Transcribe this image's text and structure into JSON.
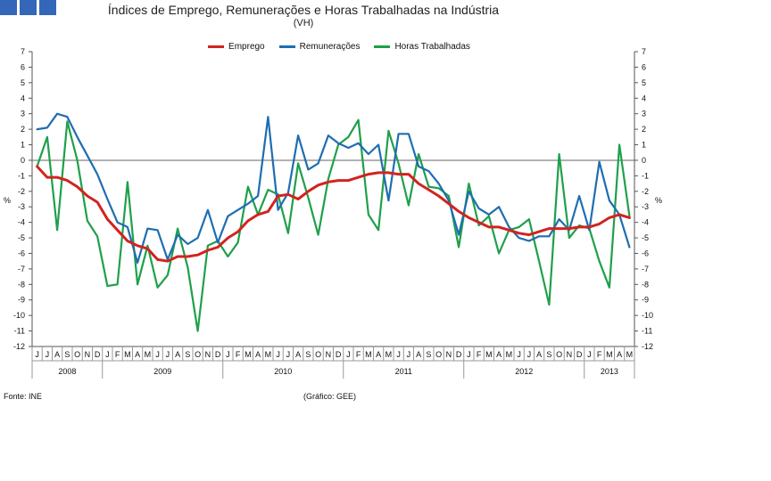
{
  "header": {
    "title": "Índices de Emprego, Remunerações e Horas Trabalhadas na Indústria",
    "subtitle": "(VH)"
  },
  "legend": {
    "emprego": "Emprego",
    "remuneracoes": "Remunerações",
    "horas": "Horas Trabalhadas"
  },
  "colors": {
    "emprego": "#d2231f",
    "remuneracoes": "#1f6db1",
    "horas": "#1ea04a"
  },
  "footer": {
    "source": "Fonte: INE",
    "credit": "(Gráfico: GEE)"
  },
  "chart_data": {
    "type": "line",
    "title": "Índices de Emprego, Remunerações e Horas Trabalhadas na Indústria",
    "subtitle": "(VH)",
    "ylabel_left": "%",
    "ylabel_right": "%",
    "ylim": [
      -12,
      7
    ],
    "yticks": [
      7,
      6,
      5,
      4,
      3,
      2,
      1,
      0,
      -1,
      -2,
      -3,
      -4,
      -5,
      -6,
      -7,
      -8,
      -9,
      -10,
      -11,
      -12
    ],
    "months": [
      "J",
      "J",
      "A",
      "S",
      "O",
      "N",
      "D",
      "J",
      "F",
      "M",
      "A",
      "M",
      "J",
      "J",
      "A",
      "S",
      "O",
      "N",
      "D",
      "J",
      "F",
      "M",
      "A",
      "M",
      "J",
      "J",
      "A",
      "S",
      "O",
      "N",
      "D",
      "J",
      "F",
      "M",
      "A",
      "M",
      "J",
      "J",
      "A",
      "S",
      "O",
      "N",
      "D",
      "J",
      "F",
      "M",
      "A",
      "M",
      "J",
      "J",
      "A",
      "S",
      "O",
      "N",
      "D",
      "J",
      "F",
      "M",
      "A",
      "M"
    ],
    "years": [
      {
        "label": "2008",
        "start": 0,
        "count": 7
      },
      {
        "label": "2009",
        "start": 7,
        "count": 12
      },
      {
        "label": "2010",
        "start": 19,
        "count": 12
      },
      {
        "label": "2011",
        "start": 31,
        "count": 12
      },
      {
        "label": "2012",
        "start": 43,
        "count": 12
      },
      {
        "label": "2013",
        "start": 55,
        "count": 5
      }
    ],
    "series": [
      {
        "key": "emprego",
        "name": "Emprego",
        "values": [
          -0.4,
          -1.1,
          -1.1,
          -1.3,
          -1.7,
          -2.3,
          -2.7,
          -3.8,
          -4.5,
          -5.2,
          -5.5,
          -5.7,
          -6.4,
          -6.5,
          -6.2,
          -6.2,
          -6.1,
          -5.8,
          -5.6,
          -5.0,
          -4.6,
          -3.9,
          -3.5,
          -3.3,
          -2.3,
          -2.2,
          -2.5,
          -2.0,
          -1.6,
          -1.4,
          -1.3,
          -1.3,
          -1.1,
          -0.9,
          -0.8,
          -0.8,
          -0.9,
          -0.9,
          -1.5,
          -1.9,
          -2.3,
          -2.8,
          -3.3,
          -3.7,
          -4.0,
          -4.3,
          -4.3,
          -4.5,
          -4.7,
          -4.8,
          -4.6,
          -4.4,
          -4.4,
          -4.4,
          -4.3,
          -4.3,
          -4.1,
          -3.7,
          -3.5,
          -3.7
        ]
      },
      {
        "key": "remuneracoes",
        "name": "Remunerações",
        "values": [
          2.0,
          2.1,
          3.0,
          2.8,
          1.5,
          0.3,
          -0.9,
          -2.5,
          -4.0,
          -4.3,
          -6.6,
          -4.4,
          -4.5,
          -6.4,
          -4.8,
          -5.4,
          -5.0,
          -3.2,
          -5.3,
          -3.6,
          -3.2,
          -2.8,
          -2.3,
          2.8,
          -3.2,
          -2.1,
          1.6,
          -0.6,
          -0.2,
          1.6,
          1.1,
          0.8,
          1.1,
          0.4,
          1.0,
          -2.6,
          1.7,
          1.7,
          -0.4,
          -0.7,
          -1.5,
          -2.6,
          -4.8,
          -2.0,
          -3.1,
          -3.5,
          -3.0,
          -4.3,
          -5.0,
          -5.2,
          -4.9,
          -4.9,
          -3.8,
          -4.5,
          -2.3,
          -4.5,
          -0.1,
          -2.6,
          -3.5,
          -5.6
        ]
      },
      {
        "key": "horas",
        "name": "Horas Trabalhadas",
        "values": [
          -0.4,
          1.5,
          -4.5,
          2.5,
          0.0,
          -3.9,
          -4.9,
          -8.1,
          -8.0,
          -1.4,
          -8.0,
          -5.5,
          -8.2,
          -7.4,
          -4.4,
          -6.9,
          -11.0,
          -5.5,
          -5.2,
          -6.2,
          -5.3,
          -1.7,
          -3.5,
          -1.9,
          -2.2,
          -4.7,
          -0.2,
          -2.4,
          -4.8,
          -1.2,
          1.0,
          1.5,
          2.6,
          -3.5,
          -4.5,
          1.9,
          -0.2,
          -2.9,
          0.4,
          -1.7,
          -1.8,
          -2.3,
          -5.6,
          -1.5,
          -4.2,
          -3.6,
          -6.0,
          -4.5,
          -4.3,
          -3.8,
          -6.5,
          -9.3,
          0.4,
          -5.0,
          -4.2,
          -4.4,
          -6.5,
          -8.2,
          1.0,
          -3.6
        ]
      }
    ]
  }
}
